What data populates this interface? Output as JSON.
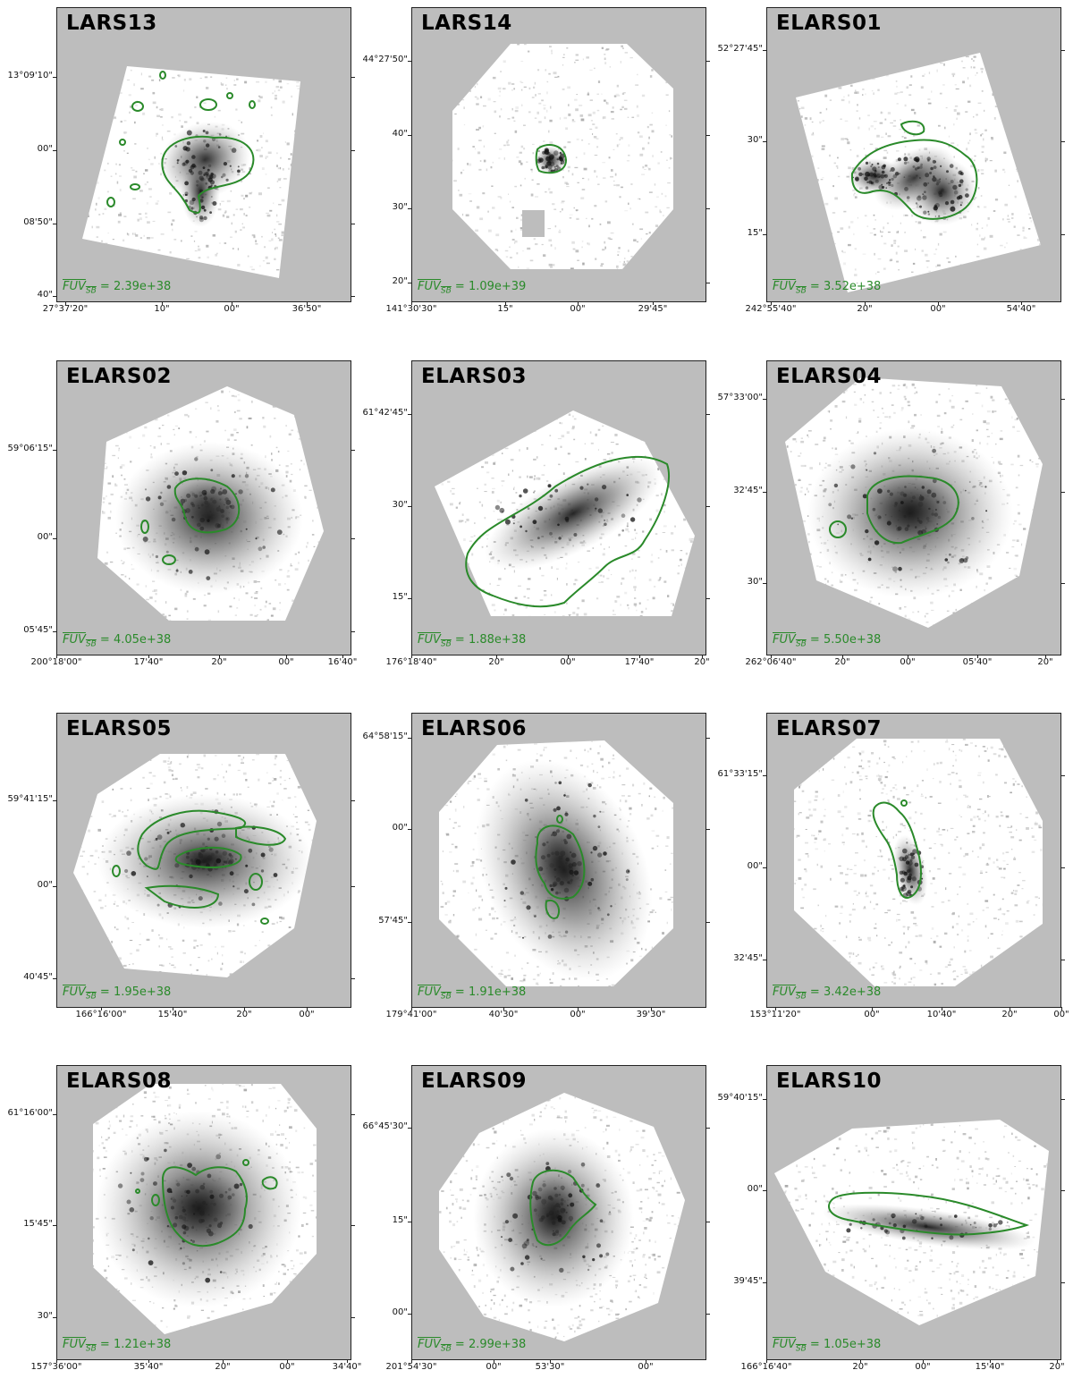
{
  "panels": [
    {
      "title": "LARS13",
      "fuv_label": "FUV",
      "fuv_sub": "SB",
      "fuv_value": "= 2.39e+38",
      "yticks": [
        "13°09'10\"",
        "00\"",
        "08'50\"",
        "40\""
      ],
      "xticks": [
        "27°37'20\"",
        "10\"",
        "00\"",
        "36'50\""
      ]
    },
    {
      "title": "LARS14",
      "fuv_label": "FUV",
      "fuv_sub": "SB",
      "fuv_value": "= 1.09e+39",
      "yticks": [
        "44°27'50\"",
        "40\"",
        "30\"",
        "20\""
      ],
      "xticks": [
        "141°30'30\"",
        "15\"",
        "00\"",
        "29'45\""
      ]
    },
    {
      "title": "ELARS01",
      "fuv_label": "FUV",
      "fuv_sub": "SB",
      "fuv_value": "= 3.52e+38",
      "yticks": [
        "52°27'45\"",
        "30\"",
        "15\""
      ],
      "xticks": [
        "242°55'40\"",
        "20\"",
        "00\"",
        "54'40\""
      ]
    },
    {
      "title": "ELARS02",
      "fuv_label": "FUV",
      "fuv_sub": "SB",
      "fuv_value": "= 4.05e+38",
      "yticks": [
        "59°06'15\"",
        "00\"",
        "05'45\""
      ],
      "xticks": [
        "200°18'00\"",
        "17'40\"",
        "20\"",
        "00\"",
        "16'40\""
      ]
    },
    {
      "title": "ELARS03",
      "fuv_label": "FUV",
      "fuv_sub": "SB",
      "fuv_value": "= 1.88e+38",
      "yticks": [
        "61°42'45\"",
        "30\"",
        "15\""
      ],
      "xticks": [
        "176°18'40\"",
        "20\"",
        "00\"",
        "17'40\"",
        "20\""
      ]
    },
    {
      "title": "ELARS04",
      "fuv_label": "FUV",
      "fuv_sub": "SB",
      "fuv_value": "= 5.50e+38",
      "yticks": [
        "57°33'00\"",
        "32'45\"",
        "30\""
      ],
      "xticks": [
        "262°06'40\"",
        "20\"",
        "00\"",
        "05'40\"",
        "20\""
      ]
    },
    {
      "title": "ELARS05",
      "fuv_label": "FUV",
      "fuv_sub": "SB",
      "fuv_value": "= 1.95e+38",
      "yticks": [
        "59°41'15\"",
        "00\"",
        "40'45\""
      ],
      "xticks": [
        "166°16'00\"",
        "15'40\"",
        "20\"",
        "00\""
      ]
    },
    {
      "title": "ELARS06",
      "fuv_label": "FUV",
      "fuv_sub": "SB",
      "fuv_value": "= 1.91e+38",
      "yticks": [
        "64°58'15\"",
        "00\"",
        "57'45\""
      ],
      "xticks": [
        "179°41'00\"",
        "40'30\"",
        "00\"",
        "39'30\""
      ]
    },
    {
      "title": "ELARS07",
      "fuv_label": "FUV",
      "fuv_sub": "SB",
      "fuv_value": "= 3.42e+38",
      "yticks": [
        "61°33'15\"",
        "00\"",
        "32'45\""
      ],
      "xticks": [
        "153°11'20\"",
        "00\"",
        "10'40\"",
        "20\"",
        "00\""
      ]
    },
    {
      "title": "ELARS08",
      "fuv_label": "FUV",
      "fuv_sub": "SB",
      "fuv_value": "= 1.21e+38",
      "yticks": [
        "61°16'00\"",
        "15'45\"",
        "30\""
      ],
      "xticks": [
        "157°36'00\"",
        "35'40\"",
        "20\"",
        "00\"",
        "34'40\""
      ]
    },
    {
      "title": "ELARS09",
      "fuv_label": "FUV",
      "fuv_sub": "SB",
      "fuv_value": "= 2.99e+38",
      "yticks": [
        "66°45'30\"",
        "15\"",
        "00\""
      ],
      "xticks": [
        "201°54'30\"",
        "00\"",
        "53'30\"",
        "00\""
      ]
    },
    {
      "title": "ELARS10",
      "fuv_label": "FUV",
      "fuv_sub": "SB",
      "fuv_value": "= 1.05e+38",
      "yticks": [
        "59°40'15\"",
        "00\"",
        "39'45\""
      ],
      "xticks": [
        "166°16'40\"",
        "20\"",
        "00\"",
        "15'40\"",
        "20\""
      ]
    }
  ],
  "colors": {
    "background": "#bdbdbd",
    "contour": "#2a8a2a",
    "galaxy": "#1a1a1a",
    "footprint": "#ffffff"
  }
}
